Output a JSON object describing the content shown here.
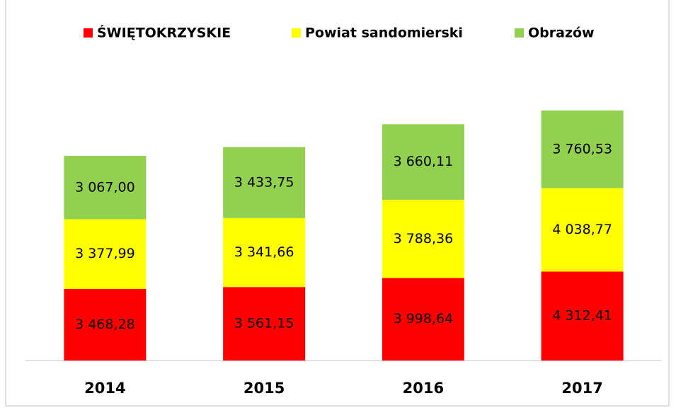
{
  "chart_data": {
    "type": "stacked_bar",
    "categories": [
      "2014",
      "2015",
      "2016",
      "2017"
    ],
    "series": [
      {
        "name": "ŚWIĘTOKRZYSKIE",
        "color": "#ff0000",
        "values": [
          3468.28,
          3561.15,
          3998.64,
          4312.41
        ],
        "value_labels": [
          "3 468,28",
          "3 561,15",
          "3 998,64",
          "4 312,41"
        ]
      },
      {
        "name": "Powiat sandomierski",
        "color": "#ffff00",
        "values": [
          3377.99,
          3341.66,
          3788.36,
          4038.77
        ],
        "value_labels": [
          "3 377,99",
          "3 341,66",
          "3 788,36",
          "4 038,77"
        ]
      },
      {
        "name": "Obrazów",
        "color": "#92d050",
        "values": [
          3067.0,
          3433.75,
          3660.11,
          3760.53
        ],
        "value_labels": [
          "3 067,00",
          "3 433,75",
          "3 660,11",
          "3 760,53"
        ]
      }
    ],
    "legend": "top"
  }
}
